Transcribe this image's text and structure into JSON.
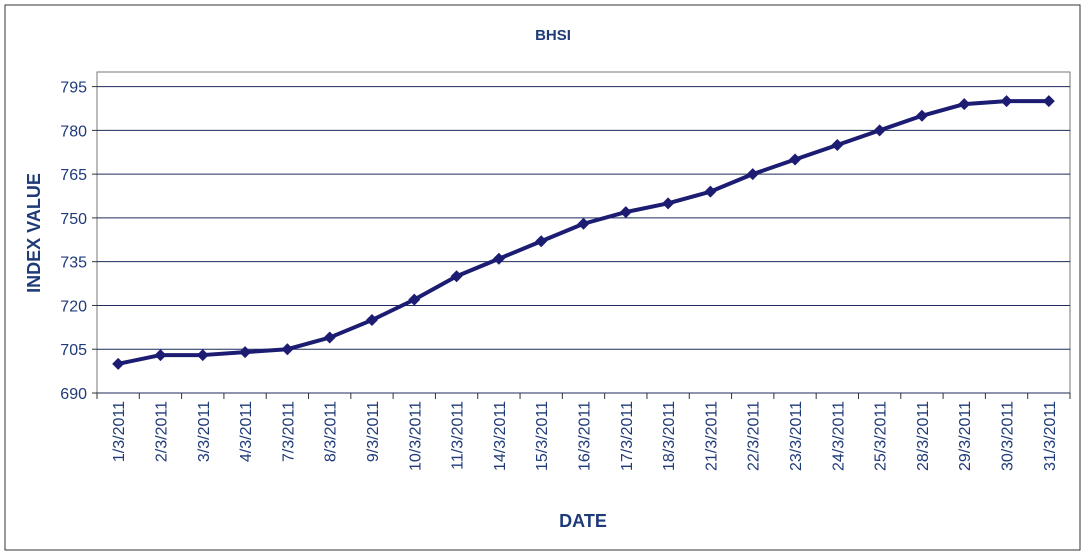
{
  "chart_data": {
    "type": "line",
    "title": "BHSI",
    "x_label": "DATE",
    "y_label": "INDEX VALUE",
    "categories": [
      "1/3/2011",
      "2/3/2011",
      "3/3/2011",
      "4/3/2011",
      "7/3/2011",
      "8/3/2011",
      "9/3/2011",
      "10/3/2011",
      "11/3/2011",
      "14/3/2011",
      "15/3/2011",
      "16/3/2011",
      "17/3/2011",
      "18/3/2011",
      "21/3/2011",
      "22/3/2011",
      "23/3/2011",
      "24/3/2011",
      "25/3/2011",
      "28/3/2011",
      "29/3/2011",
      "30/3/2011",
      "31/3/2011"
    ],
    "values": [
      700,
      703,
      703,
      704,
      705,
      709,
      715,
      722,
      730,
      736,
      742,
      748,
      752,
      755,
      759,
      765,
      770,
      775,
      780,
      785,
      789,
      790,
      790
    ],
    "color": "#1c1c72",
    "ylim": [
      690,
      800
    ],
    "yticks": [
      690,
      705,
      720,
      735,
      750,
      765,
      780,
      795
    ],
    "grid": true
  }
}
